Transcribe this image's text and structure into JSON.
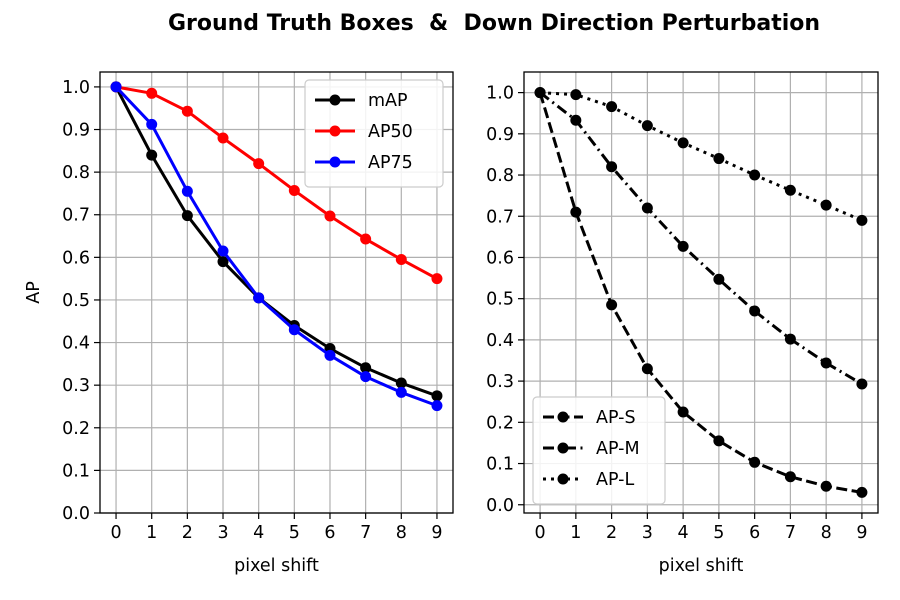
{
  "figure": {
    "suptitle": "Ground Truth Boxes  &  Down Direction Perturbation"
  },
  "chart_data": [
    {
      "type": "line",
      "xlabel": "pixel shift",
      "ylabel": "AP",
      "x": [
        0,
        1,
        2,
        3,
        4,
        5,
        6,
        7,
        8,
        9
      ],
      "xticks": [
        "0",
        "1",
        "2",
        "3",
        "4",
        "5",
        "6",
        "7",
        "8",
        "9"
      ],
      "yticks": [
        "0.0",
        "0.1",
        "0.2",
        "0.3",
        "0.4",
        "0.5",
        "0.6",
        "0.7",
        "0.8",
        "0.9",
        "1.0"
      ],
      "xlim": [
        -0.45,
        9.45
      ],
      "ylim": [
        0.0,
        1.035
      ],
      "grid": true,
      "legend_position": "top-right",
      "series": [
        {
          "name": "mAP",
          "color": "#000000",
          "linestyle": "solid",
          "marker": "circle",
          "values": [
            1.0,
            0.84,
            0.698,
            0.59,
            0.505,
            0.44,
            0.386,
            0.341,
            0.305,
            0.275
          ]
        },
        {
          "name": "AP50",
          "color": "#ff0000",
          "linestyle": "solid",
          "marker": "circle",
          "values": [
            1.0,
            0.985,
            0.943,
            0.88,
            0.82,
            0.757,
            0.697,
            0.643,
            0.595,
            0.55
          ]
        },
        {
          "name": "AP75",
          "color": "#0000ff",
          "linestyle": "solid",
          "marker": "circle",
          "values": [
            1.0,
            0.912,
            0.755,
            0.615,
            0.505,
            0.43,
            0.37,
            0.32,
            0.283,
            0.252
          ]
        }
      ]
    },
    {
      "type": "line",
      "xlabel": "pixel shift",
      "ylabel": "",
      "x": [
        0,
        1,
        2,
        3,
        4,
        5,
        6,
        7,
        8,
        9
      ],
      "xticks": [
        "0",
        "1",
        "2",
        "3",
        "4",
        "5",
        "6",
        "7",
        "8",
        "9"
      ],
      "yticks": [
        "0.0",
        "0.1",
        "0.2",
        "0.3",
        "0.4",
        "0.5",
        "0.6",
        "0.7",
        "0.8",
        "0.9",
        "1.0"
      ],
      "xlim": [
        -0.45,
        9.45
      ],
      "ylim": [
        -0.02,
        1.05
      ],
      "grid": true,
      "legend_position": "bottom-left",
      "series": [
        {
          "name": "AP-S",
          "color": "#000000",
          "linestyle": "dashed",
          "marker": "circle",
          "values": [
            1.0,
            0.71,
            0.485,
            0.33,
            0.225,
            0.155,
            0.103,
            0.068,
            0.045,
            0.03
          ]
        },
        {
          "name": "AP-M",
          "color": "#000000",
          "linestyle": "dashdot",
          "marker": "circle",
          "values": [
            1.0,
            0.933,
            0.82,
            0.72,
            0.627,
            0.547,
            0.47,
            0.402,
            0.344,
            0.293
          ]
        },
        {
          "name": "AP-L",
          "color": "#000000",
          "linestyle": "dotted",
          "marker": "circle",
          "values": [
            1.0,
            0.995,
            0.966,
            0.92,
            0.878,
            0.84,
            0.8,
            0.763,
            0.727,
            0.69
          ]
        }
      ]
    }
  ]
}
